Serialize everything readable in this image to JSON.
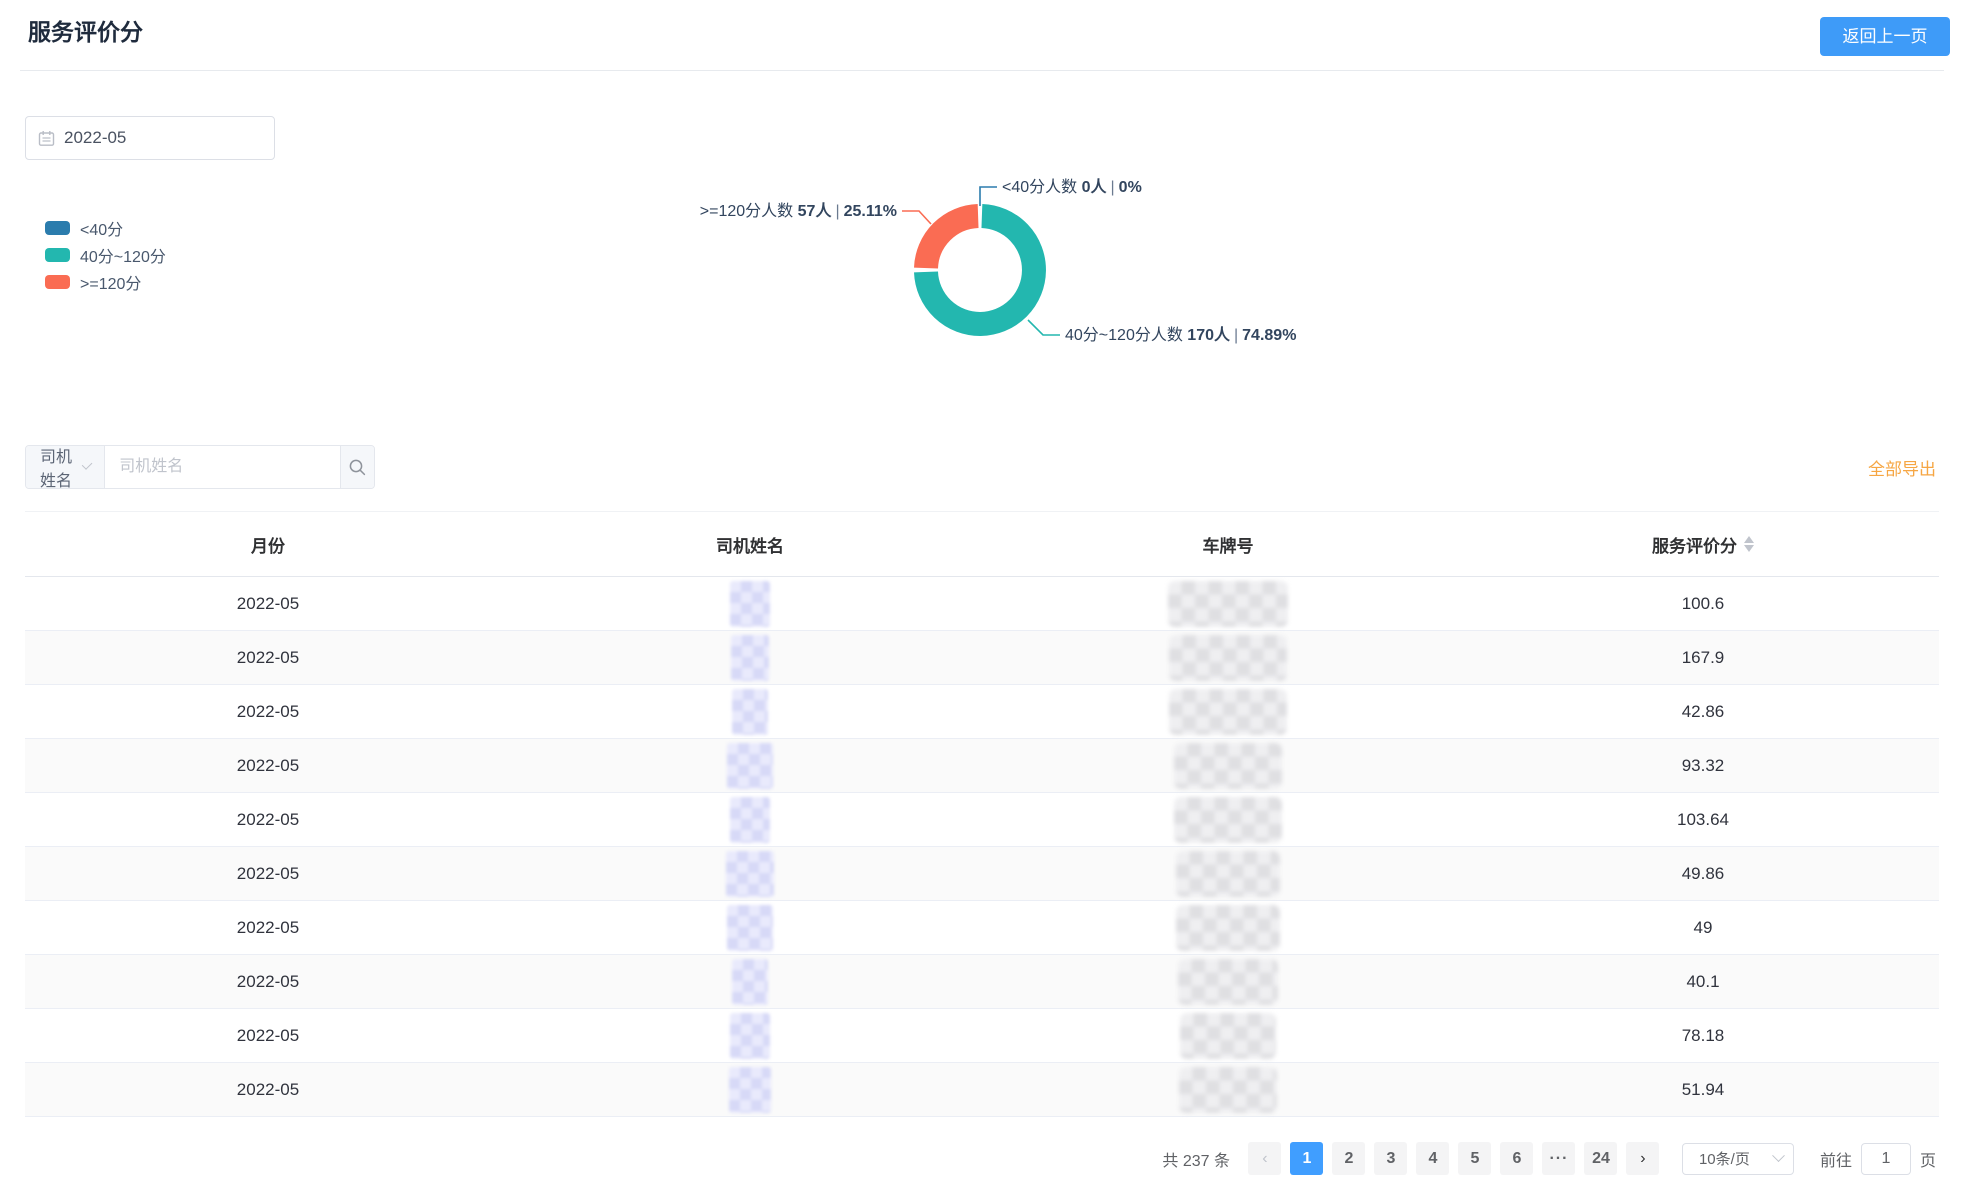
{
  "page": {
    "title": "服务评价分"
  },
  "header": {
    "back_button": "返回上一页"
  },
  "filters": {
    "month": "2022-05"
  },
  "chart_data": {
    "type": "pie",
    "subtype": "donut",
    "legend_position": "left",
    "legend": [
      {
        "label": "<40分",
        "color": "#2B7CAD"
      },
      {
        "label": "40分~120分",
        "color": "#23B7AF"
      },
      {
        "label": ">=120分",
        "color": "#FA6C53"
      }
    ],
    "series": [
      {
        "name": "<40分人数",
        "value": 0,
        "unit": "人",
        "pct": "0%",
        "color": "#2B7CAD"
      },
      {
        "name": "40分~120分人数",
        "value": 170,
        "unit": "人",
        "pct": "74.89%",
        "color": "#23B7AF"
      },
      {
        "name": ">=120分人数",
        "value": 57,
        "unit": "人",
        "pct": "25.11%",
        "color": "#FA6C53"
      }
    ],
    "labels": {
      "lt40": {
        "name": "<40分人数",
        "count": "0人",
        "sep": "|",
        "pct": "0%"
      },
      "mid": {
        "name": "40分~120分人数",
        "count": "170人",
        "sep": "|",
        "pct": "74.89%"
      },
      "gte120": {
        "name": ">=120分人数",
        "count": "57人",
        "sep": "|",
        "pct": "25.11%"
      }
    }
  },
  "search": {
    "select_label": "司机姓名",
    "input_placeholder": "司机姓名",
    "export_label": "全部导出"
  },
  "table": {
    "columns": [
      "月份",
      "司机姓名",
      "车牌号",
      "服务评价分"
    ],
    "rows": [
      {
        "month": "2022-05",
        "score": "100.6"
      },
      {
        "month": "2022-05",
        "score": "167.9"
      },
      {
        "month": "2022-05",
        "score": "42.86"
      },
      {
        "month": "2022-05",
        "score": "93.32"
      },
      {
        "month": "2022-05",
        "score": "103.64"
      },
      {
        "month": "2022-05",
        "score": "49.86"
      },
      {
        "month": "2022-05",
        "score": "49"
      },
      {
        "month": "2022-05",
        "score": "40.1"
      },
      {
        "month": "2022-05",
        "score": "78.18"
      },
      {
        "month": "2022-05",
        "score": "51.94"
      }
    ]
  },
  "pagination": {
    "total": "共 237 条",
    "pages": [
      "1",
      "2",
      "3",
      "4",
      "5",
      "6",
      "···",
      "24"
    ],
    "active_page": "1",
    "page_size": "10条/页",
    "goto_label": "前往",
    "goto_value": "1",
    "goto_suffix": "页"
  }
}
